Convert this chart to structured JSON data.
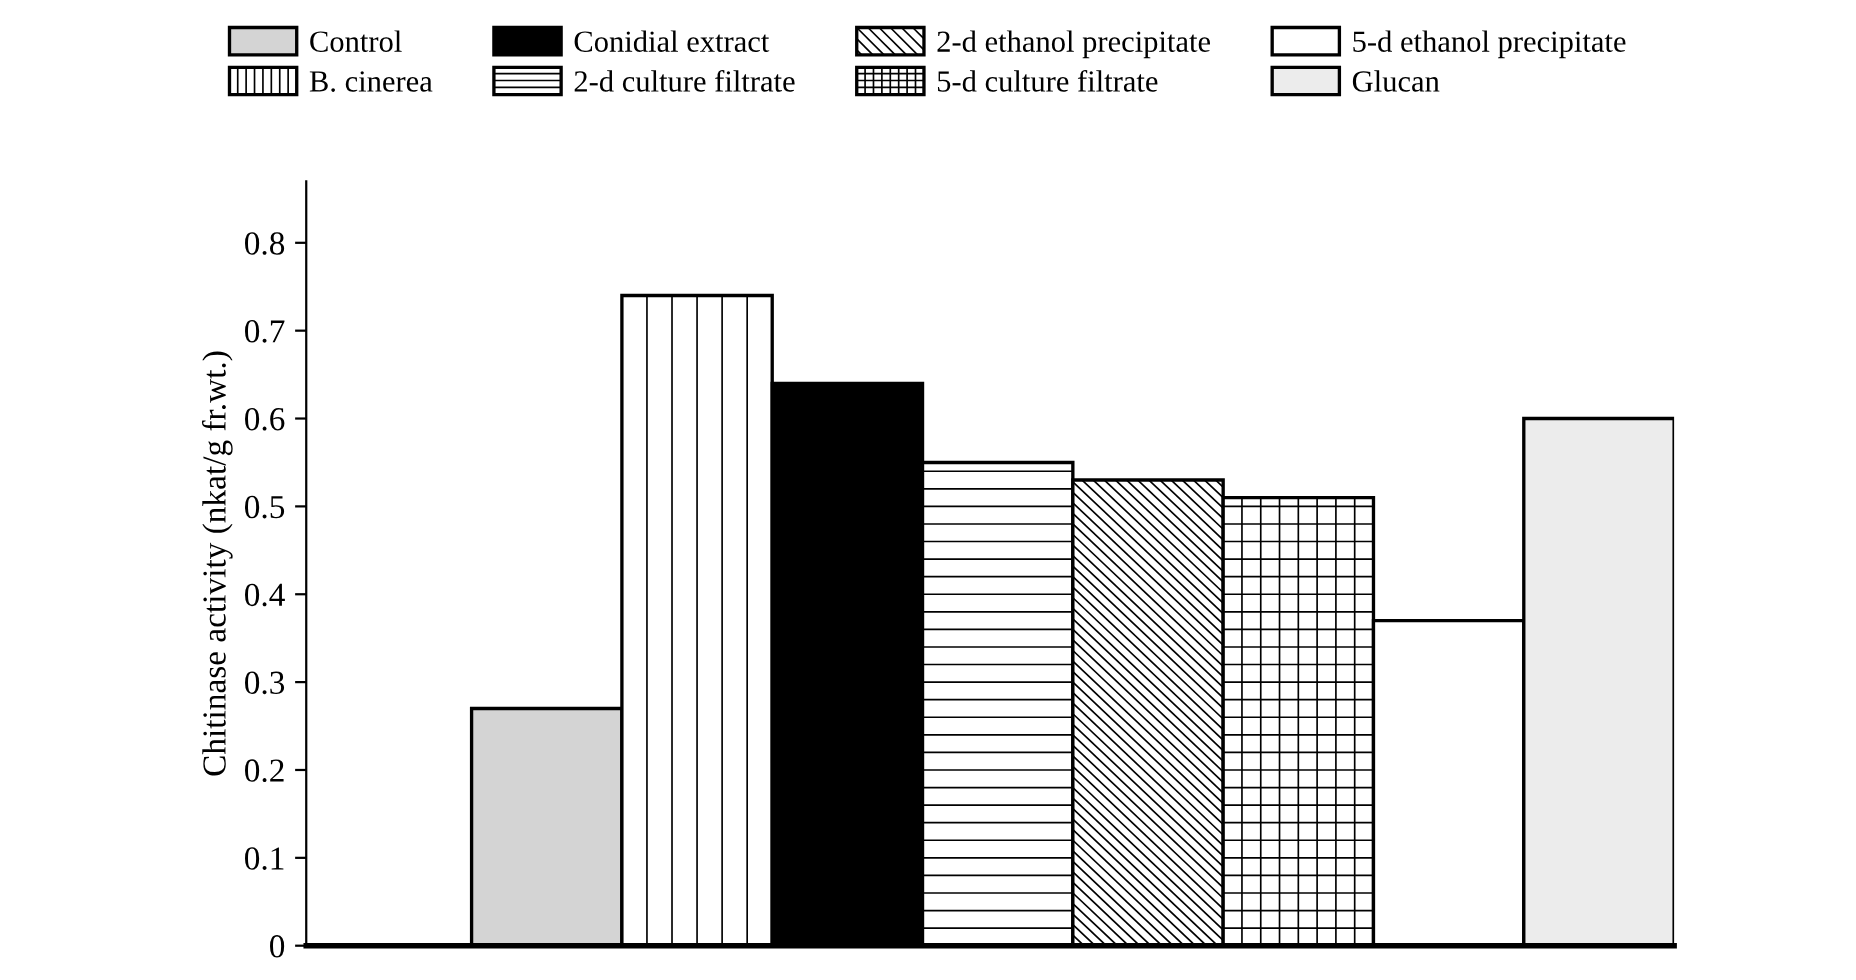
{
  "chart_data": {
    "type": "bar",
    "ylabel": "Chitinase activity (nkat/g fr.wt.)",
    "categories": [
      null
    ],
    "series": [
      {
        "name": "Control",
        "color": "#d4d4d4",
        "values": [
          0.27
        ]
      },
      {
        "name": "B. cinerea",
        "color": "#ffffff",
        "values": [
          0.74
        ]
      },
      {
        "name": "Conidial extract",
        "color": "#000000",
        "values": [
          0.64
        ]
      },
      {
        "name": "2-d culture filtrate",
        "color": "#ffffff",
        "values": [
          0.55
        ]
      },
      {
        "name": "2-d ethanol precipitate",
        "color": "#ffffff",
        "values": [
          0.53
        ]
      },
      {
        "name": "5-d culture filtrate",
        "color": "#ffffff",
        "values": [
          0.51
        ]
      },
      {
        "name": "5-d ethanol precipitate",
        "color": "#ffffff",
        "values": [
          0.37
        ]
      },
      {
        "name": "Glucan",
        "color": "#ececec",
        "values": [
          0.6
        ]
      }
    ],
    "ylim": [
      0,
      0.87
    ],
    "yticks": [
      0,
      0.1,
      0.2,
      0.3,
      0.4,
      0.5,
      0.6,
      0.7,
      0.8
    ],
    "tick_labels": "y",
    "legend": "top",
    "grid": false
  }
}
